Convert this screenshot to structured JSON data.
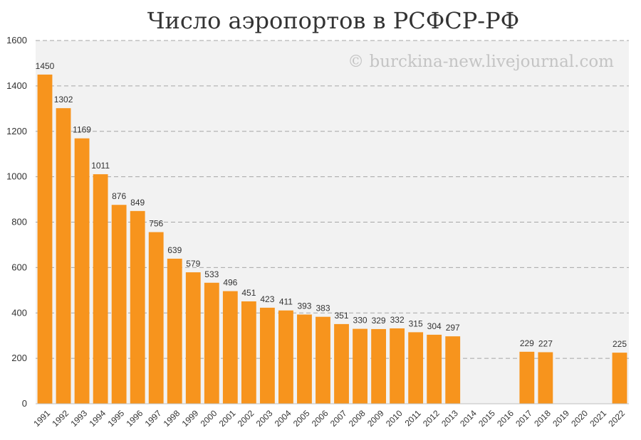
{
  "chart_data": {
    "type": "bar",
    "title": "Число аэропортов в РСФСР-РФ",
    "watermark": "© burckina-new.livejournal.com",
    "xlabel": "",
    "ylabel": "",
    "ylim": [
      0,
      1600
    ],
    "yticks": [
      0,
      200,
      400,
      600,
      800,
      1000,
      1200,
      1400,
      1600
    ],
    "grid": true,
    "bar_color": "#f7941d",
    "plot_background": "#f2f2f2",
    "categories": [
      "1991",
      "1992",
      "1993",
      "1994",
      "1995",
      "1996",
      "1997",
      "1998",
      "1999",
      "2000",
      "2001",
      "2002",
      "2003",
      "2004",
      "2005",
      "2006",
      "2007",
      "2008",
      "2009",
      "2010",
      "2011",
      "2012",
      "2013",
      "2014",
      "2015",
      "2016",
      "2017",
      "2018",
      "2019",
      "2020",
      "2021",
      "2022"
    ],
    "values": [
      1450,
      1302,
      1169,
      1011,
      876,
      849,
      756,
      639,
      579,
      533,
      496,
      451,
      423,
      411,
      393,
      383,
      351,
      330,
      329,
      332,
      315,
      304,
      297,
      null,
      null,
      null,
      229,
      227,
      null,
      null,
      null,
      225
    ]
  }
}
